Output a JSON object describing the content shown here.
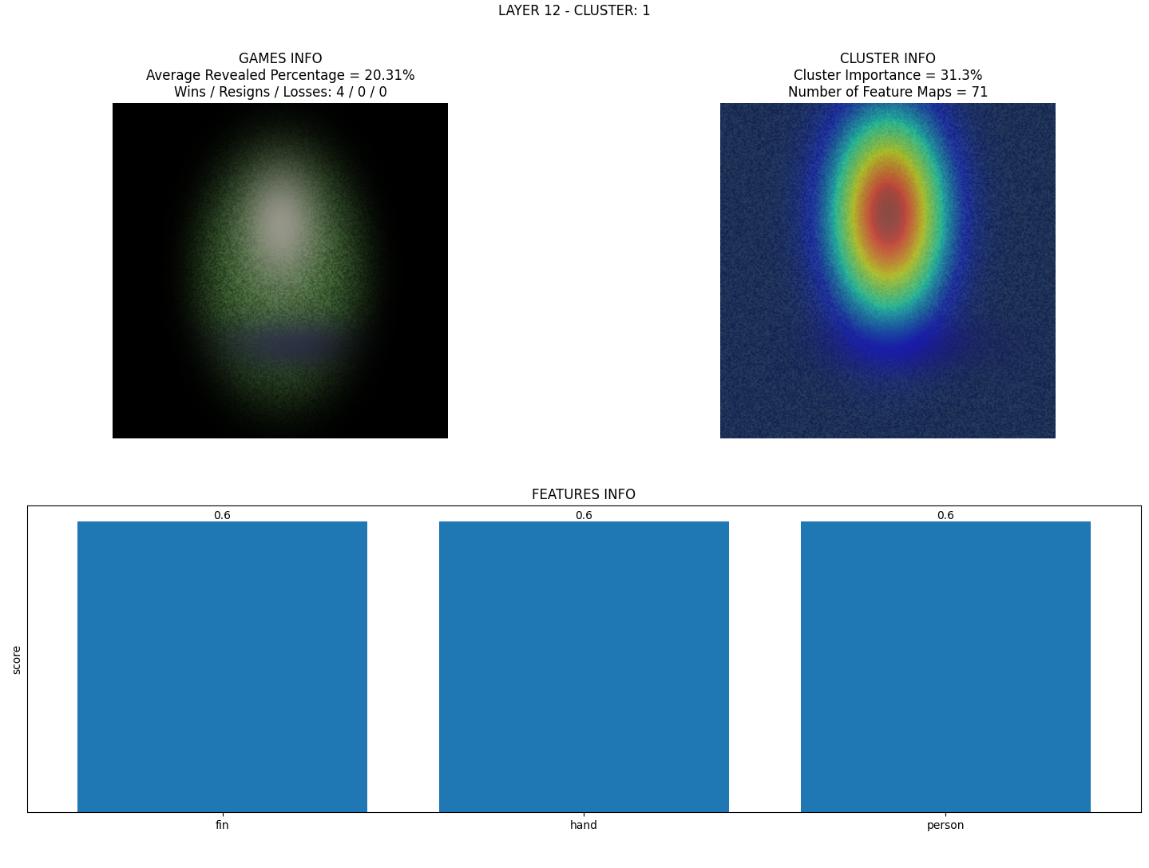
{
  "title": "LAYER 12 - CLUSTER: 1",
  "panels": [
    {
      "type": "image",
      "title": "GAMES INFO\nAverage Revealed Percentage = 20.31%\nWins / Resigns / Losses: 4 / 0 / 0"
    },
    {
      "type": "heatmap_image",
      "title": "CLUSTER INFO\nCluster Importance = 31.3%\nNumber of Feature Maps = 71"
    }
  ],
  "chart_data": {
    "type": "bar",
    "title": "FEATURES INFO",
    "categories": [
      "fin",
      "hand",
      "person"
    ],
    "values": [
      0.6,
      0.6,
      0.6
    ],
    "color": "#1f77b4",
    "ylabel": "score",
    "ylim": [
      0,
      0.633
    ],
    "yticks": [],
    "data_labels": true,
    "tick_labels": "x"
  }
}
